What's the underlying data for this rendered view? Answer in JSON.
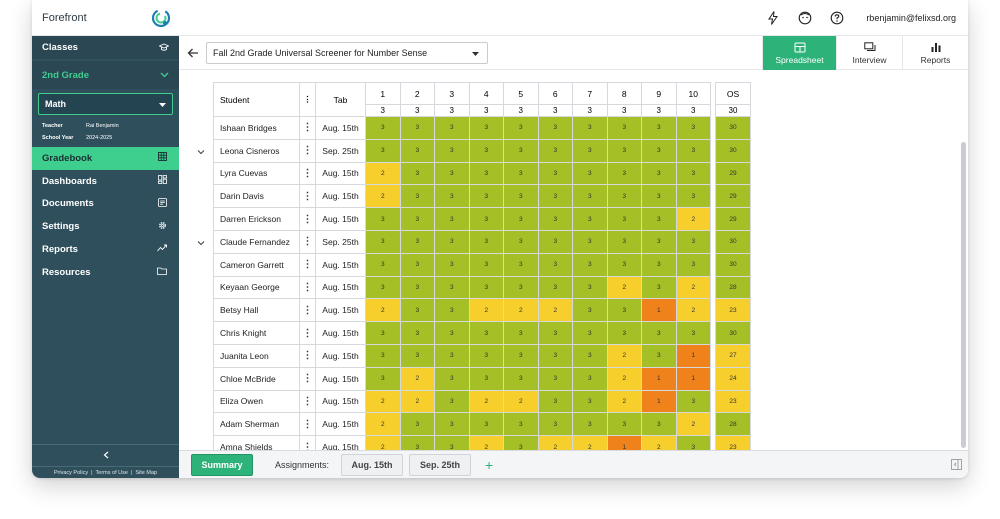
{
  "app": {
    "title": "Forefront"
  },
  "user": {
    "email": "rbenjamin@felixsd.org"
  },
  "sidebar": {
    "classes_label": "Classes",
    "grade_label": "2nd Grade",
    "subject": "Math",
    "teacher_label": "Teacher",
    "teacher": "Rai Benjamin",
    "school_year_label": "School Year",
    "school_year": "2024-2025",
    "nav": [
      {
        "label": "Gradebook",
        "icon": "grid-icon"
      },
      {
        "label": "Dashboards",
        "icon": "dashboard-icon"
      },
      {
        "label": "Documents",
        "icon": "document-icon"
      },
      {
        "label": "Settings",
        "icon": "gear-icon"
      },
      {
        "label": "Reports",
        "icon": "trend-icon"
      },
      {
        "label": "Resources",
        "icon": "folder-icon"
      }
    ],
    "footer": {
      "privacy": "Privacy Policy",
      "terms": "Terms of Use",
      "sitemap": "Site Map",
      "sep": "|"
    }
  },
  "toolbar": {
    "assessment": "Fall 2nd Grade Universal Screener for Number Sense",
    "views": [
      {
        "label": "Spreadsheet",
        "active": true
      },
      {
        "label": "Interview",
        "active": false
      },
      {
        "label": "Reports",
        "active": false
      }
    ]
  },
  "grid": {
    "headers": {
      "student": "Student",
      "tab": "Tab",
      "os": "OS",
      "os_max": "30"
    },
    "questions": [
      "1",
      "2",
      "3",
      "4",
      "5",
      "6",
      "7",
      "8",
      "9",
      "10"
    ],
    "question_max": [
      "3",
      "3",
      "3",
      "3",
      "3",
      "3",
      "3",
      "3",
      "3",
      "3"
    ],
    "rows": [
      {
        "name": "Ishaan Bridges",
        "tab": "Aug. 15th",
        "scores": [
          3,
          3,
          3,
          3,
          3,
          3,
          3,
          3,
          3,
          3
        ],
        "os": 30,
        "expandable": false
      },
      {
        "name": "Leona Cisneros",
        "tab": "Sep. 25th",
        "scores": [
          3,
          3,
          3,
          3,
          3,
          3,
          3,
          3,
          3,
          3
        ],
        "os": 30,
        "expandable": true
      },
      {
        "name": "Lyra Cuevas",
        "tab": "Aug. 15th",
        "scores": [
          2,
          3,
          3,
          3,
          3,
          3,
          3,
          3,
          3,
          3
        ],
        "os": 29,
        "expandable": false
      },
      {
        "name": "Darin Davis",
        "tab": "Aug. 15th",
        "scores": [
          2,
          3,
          3,
          3,
          3,
          3,
          3,
          3,
          3,
          3
        ],
        "os": 29,
        "expandable": false
      },
      {
        "name": "Darren Erickson",
        "tab": "Aug. 15th",
        "scores": [
          3,
          3,
          3,
          3,
          3,
          3,
          3,
          3,
          3,
          2
        ],
        "os": 29,
        "expandable": false
      },
      {
        "name": "Claude Fernandez",
        "tab": "Sep. 25th",
        "scores": [
          3,
          3,
          3,
          3,
          3,
          3,
          3,
          3,
          3,
          3
        ],
        "os": 30,
        "expandable": true
      },
      {
        "name": "Cameron Garrett",
        "tab": "Aug. 15th",
        "scores": [
          3,
          3,
          3,
          3,
          3,
          3,
          3,
          3,
          3,
          3
        ],
        "os": 30,
        "expandable": false
      },
      {
        "name": "Keyaan George",
        "tab": "Aug. 15th",
        "scores": [
          3,
          3,
          3,
          3,
          3,
          3,
          3,
          2,
          3,
          2
        ],
        "os": 28,
        "expandable": false
      },
      {
        "name": "Betsy Hall",
        "tab": "Aug. 15th",
        "scores": [
          2,
          3,
          3,
          2,
          2,
          2,
          3,
          3,
          1,
          2
        ],
        "os": 23,
        "expandable": false
      },
      {
        "name": "Chris Knight",
        "tab": "Aug. 15th",
        "scores": [
          3,
          3,
          3,
          3,
          3,
          3,
          3,
          3,
          3,
          3
        ],
        "os": 30,
        "expandable": false
      },
      {
        "name": "Juanita Leon",
        "tab": "Aug. 15th",
        "scores": [
          3,
          3,
          3,
          3,
          3,
          3,
          3,
          2,
          3,
          1
        ],
        "os": 27,
        "expandable": false
      },
      {
        "name": "Chloe McBride",
        "tab": "Aug. 15th",
        "scores": [
          3,
          2,
          3,
          3,
          3,
          3,
          3,
          2,
          1,
          1
        ],
        "os": 24,
        "expandable": false
      },
      {
        "name": "Eliza Owen",
        "tab": "Aug. 15th",
        "scores": [
          2,
          2,
          3,
          2,
          2,
          3,
          3,
          2,
          1,
          3
        ],
        "os": 23,
        "expandable": false
      },
      {
        "name": "Adam Sherman",
        "tab": "Aug. 15th",
        "scores": [
          2,
          3,
          3,
          3,
          3,
          3,
          3,
          3,
          3,
          2
        ],
        "os": 28,
        "expandable": false
      },
      {
        "name": "Amna Shields",
        "tab": "Aug. 15th",
        "scores": [
          2,
          3,
          3,
          2,
          3,
          2,
          2,
          1,
          2,
          3
        ],
        "os": 23,
        "expandable": false
      }
    ]
  },
  "bottombar": {
    "summary": "Summary",
    "assignments_label": "Assignments:",
    "assignments": [
      "Aug. 15th",
      "Sep. 25th"
    ],
    "add": "+"
  },
  "colors": {
    "score3": "#a5bf26",
    "score2": "#f7cf2d",
    "score1": "#f0821c",
    "accent": "#2db37a",
    "sidebar": "#2f4f5c"
  }
}
